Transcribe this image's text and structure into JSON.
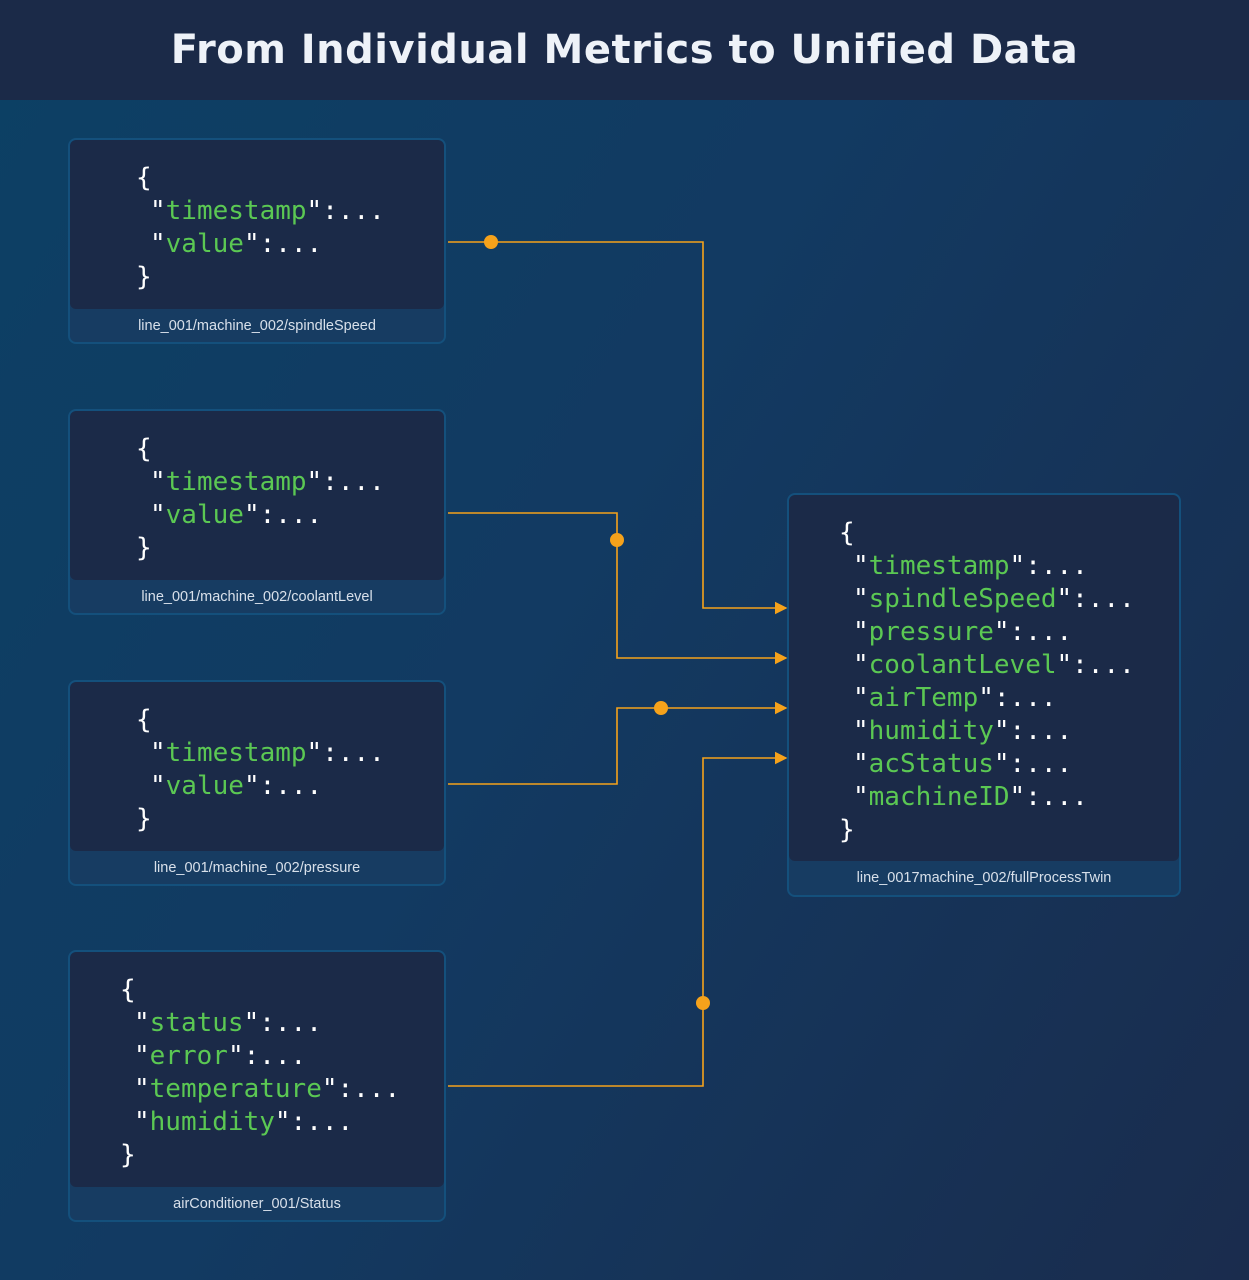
{
  "title": "From Individual Metrics to Unified Data",
  "colors": {
    "accent": "#f5a21b",
    "key": "#5bc853",
    "panel": "#1b2a48"
  },
  "sources": [
    {
      "keys": [
        "timestamp",
        "value"
      ],
      "topic": "line_001/machine_002/spindleSpeed"
    },
    {
      "keys": [
        "timestamp",
        "value"
      ],
      "topic": "line_001/machine_002/coolantLevel"
    },
    {
      "keys": [
        "timestamp",
        "value"
      ],
      "topic": "line_001/machine_002/pressure"
    },
    {
      "keys": [
        "status",
        "error",
        "temperature",
        "humidity"
      ],
      "topic": "airConditioner_001/Status"
    }
  ],
  "target": {
    "keys": [
      "timestamp",
      "spindleSpeed",
      "pressure",
      "coolantLevel",
      "airTemp",
      "humidity",
      "acStatus",
      "machineID"
    ],
    "topic": "line_0017machine_002/fullProcessTwin"
  },
  "syntax": {
    "open": "{",
    "close": "}",
    "quote": "\"",
    "suffix": ":..."
  }
}
